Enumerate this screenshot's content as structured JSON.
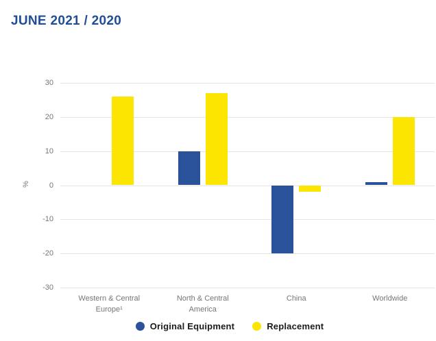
{
  "page": {
    "title": "JUNE 2021 / 2020"
  },
  "chart_data": {
    "type": "bar",
    "title": "JUNE 2021 / 2020",
    "categories": [
      "Western & Central\nEurope¹",
      "North & Central\nAmerica",
      "China",
      "Worldwide"
    ],
    "series": [
      {
        "name": "Original Equipment",
        "color": "#2a529b",
        "values": [
          0,
          10,
          -20,
          1
        ]
      },
      {
        "name": "Replacement",
        "color": "#fce500",
        "values": [
          26,
          27,
          -2,
          20
        ]
      }
    ],
    "ylabel": "%",
    "ylim": [
      -30,
      30
    ],
    "yticks": [
      30,
      20,
      10,
      0,
      -10,
      -20,
      -30
    ],
    "grid": "horizontal",
    "legend_position": "bottom",
    "colors": {
      "title": "#1f4e96",
      "axis_text": "#757575",
      "gridline": "#e4e4e4",
      "legend_text": "#1a1a1a"
    }
  }
}
